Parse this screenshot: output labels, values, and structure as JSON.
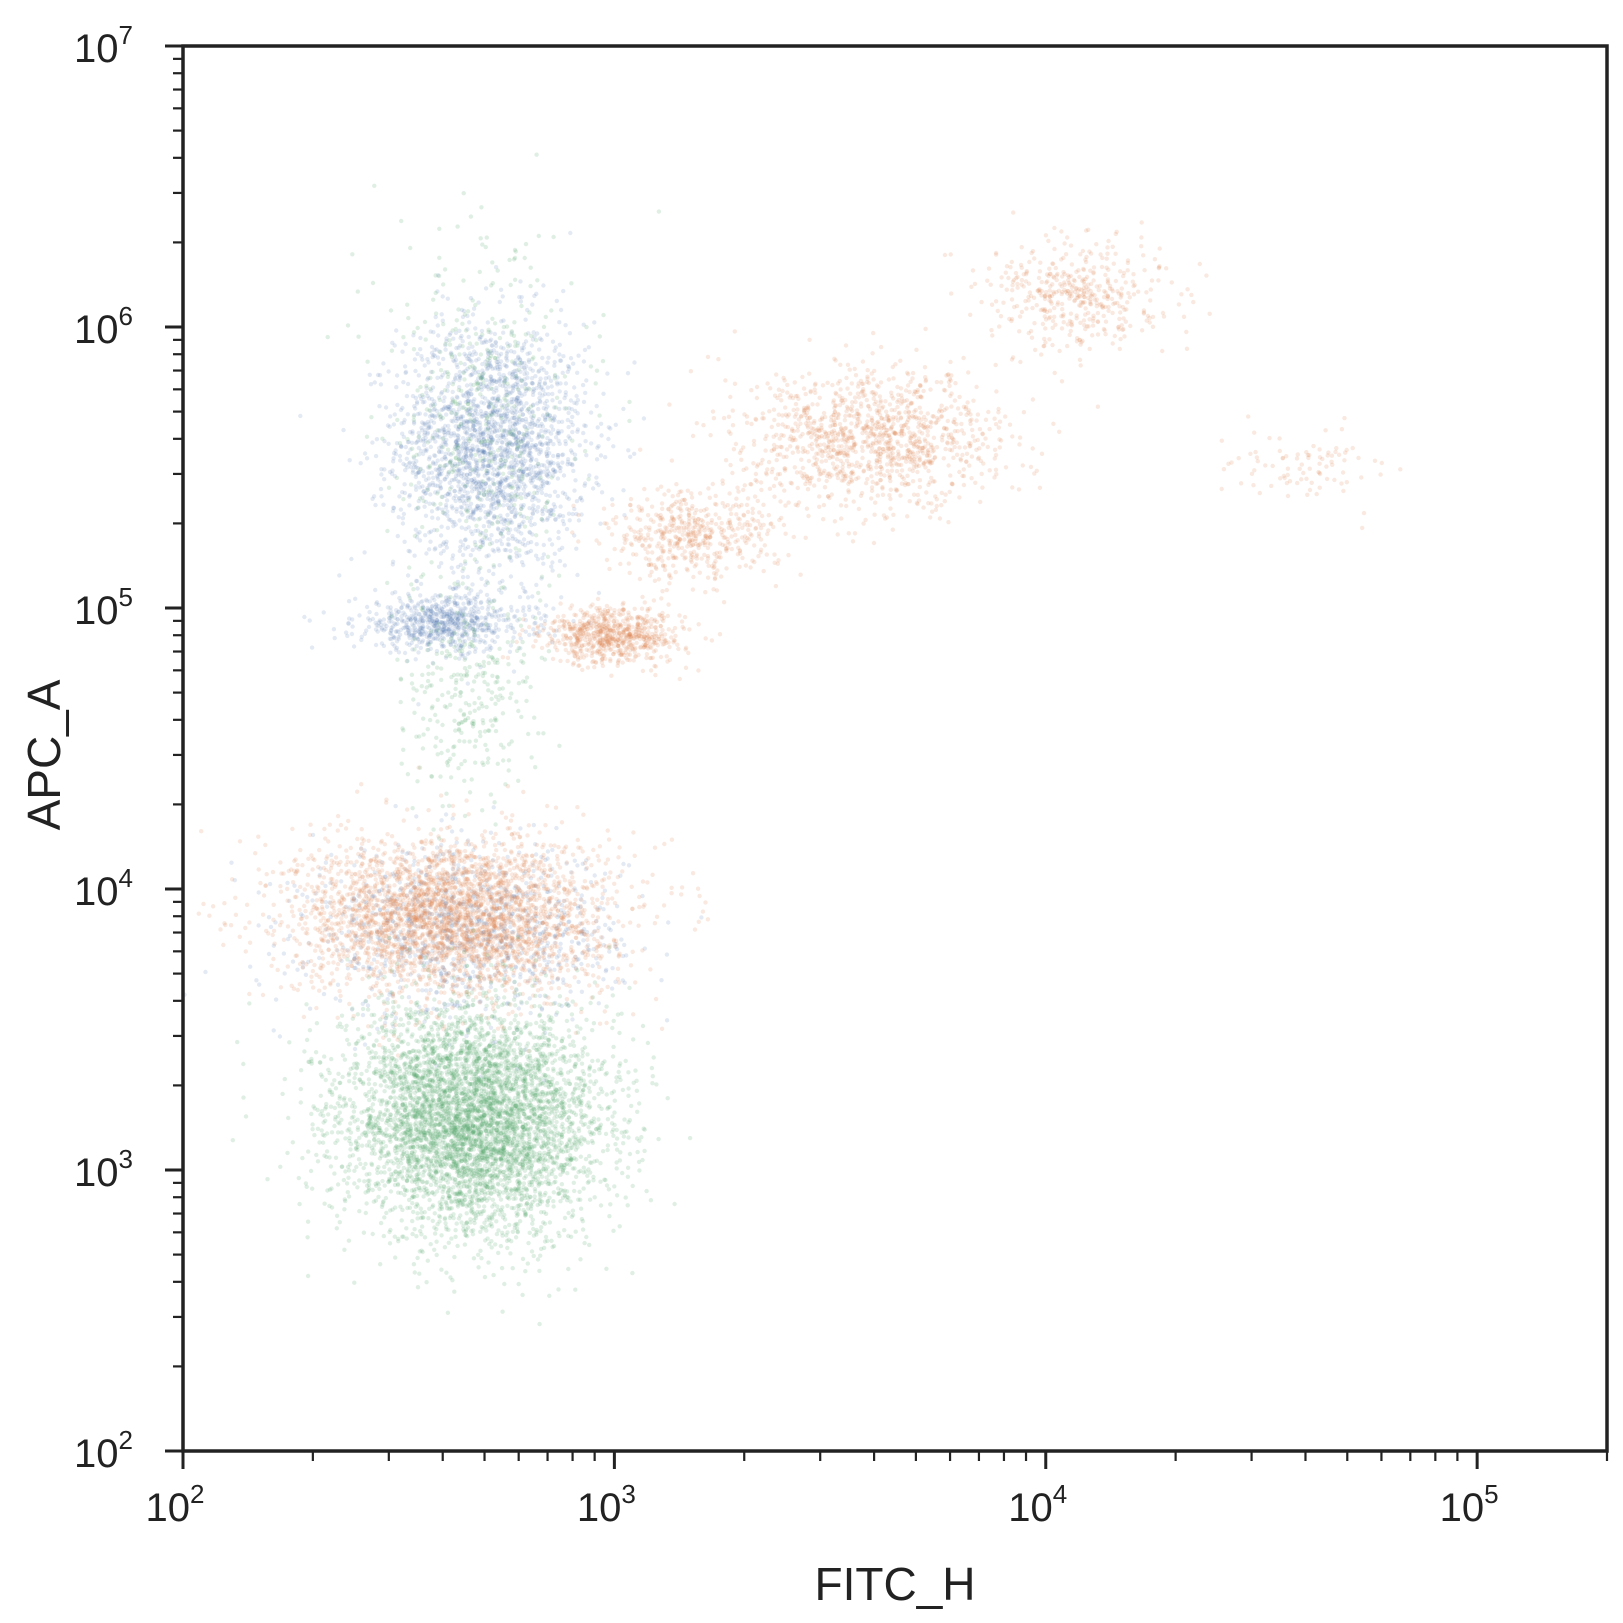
{
  "chart_data": {
    "type": "scatter",
    "title": "",
    "xlabel": "FITC_H",
    "ylabel": "APC_A",
    "xscale": "log",
    "yscale": "log",
    "xlim": [
      100,
      200000
    ],
    "ylim": [
      100,
      10000000
    ],
    "grid": false,
    "legend": "none",
    "x_tick_labels": [
      {
        "base": "10",
        "exp": "2",
        "value": 100
      },
      {
        "base": "10",
        "exp": "3",
        "value": 1000
      },
      {
        "base": "10",
        "exp": "4",
        "value": 10000
      },
      {
        "base": "10",
        "exp": "5",
        "value": 100000
      }
    ],
    "y_tick_labels": [
      {
        "base": "10",
        "exp": "2",
        "value": 100
      },
      {
        "base": "10",
        "exp": "3",
        "value": 1000
      },
      {
        "base": "10",
        "exp": "4",
        "value": 10000
      },
      {
        "base": "10",
        "exp": "5",
        "value": 100000
      },
      {
        "base": "10",
        "exp": "6",
        "value": 1000000
      },
      {
        "base": "10",
        "exp": "7",
        "value": 10000000
      }
    ],
    "series": [
      {
        "color": "#4c72b0",
        "opacity": 0.15,
        "clusters": [
          {
            "x_center": 520,
            "y_center": 380000,
            "x_spread_log": 0.11,
            "y_spread_log": 0.22,
            "count": 2200
          },
          {
            "x_center": 400,
            "y_center": 88000,
            "x_spread_log": 0.1,
            "y_spread_log": 0.05,
            "count": 700
          },
          {
            "x_center": 450,
            "y_center": 7000,
            "x_spread_log": 0.18,
            "y_spread_log": 0.15,
            "count": 1000
          }
        ]
      },
      {
        "color": "#dd8452",
        "opacity": 0.18,
        "clusters": [
          {
            "x_center": 420,
            "y_center": 8000,
            "x_spread_log": 0.18,
            "y_spread_log": 0.14,
            "count": 3200
          },
          {
            "x_center": 1000,
            "y_center": 80000,
            "x_spread_log": 0.08,
            "y_spread_log": 0.05,
            "count": 700
          },
          {
            "x_center": 1500,
            "y_center": 180000,
            "x_spread_log": 0.1,
            "y_spread_log": 0.08,
            "count": 500
          },
          {
            "x_center": 4000,
            "y_center": 400000,
            "x_spread_log": 0.15,
            "y_spread_log": 0.12,
            "count": 1200
          },
          {
            "x_center": 12000,
            "y_center": 1300000,
            "x_spread_log": 0.1,
            "y_spread_log": 0.1,
            "count": 450
          },
          {
            "x_center": 40000,
            "y_center": 320000,
            "x_spread_log": 0.1,
            "y_spread_log": 0.06,
            "count": 90
          }
        ]
      },
      {
        "color": "#55a868",
        "opacity": 0.18,
        "clusters": [
          {
            "x_center": 470,
            "y_center": 1500,
            "x_spread_log": 0.15,
            "y_spread_log": 0.2,
            "count": 5000
          },
          {
            "x_center": 470,
            "y_center": 50000,
            "x_spread_log": 0.08,
            "y_spread_log": 0.2,
            "count": 300
          },
          {
            "x_center": 500,
            "y_center": 500000,
            "x_spread_log": 0.12,
            "y_spread_log": 0.3,
            "count": 400
          }
        ]
      }
    ]
  }
}
